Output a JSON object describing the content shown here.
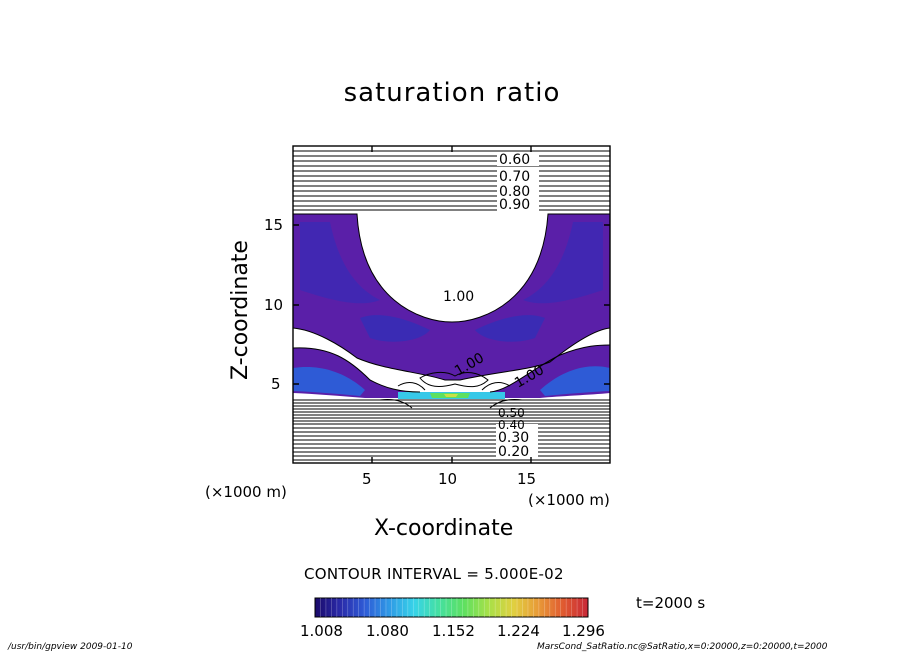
{
  "title": "saturation ratio",
  "chart_data": {
    "type": "heatmap",
    "title": "saturation ratio",
    "xlabel": "X-coordinate",
    "ylabel": "Z-coordinate",
    "x_unit": "(×1000 m)",
    "z_unit": "(×1000 m)",
    "xlim": [
      0,
      20
    ],
    "ylim": [
      0,
      20
    ],
    "x_ticks": [
      "5",
      "10",
      "15"
    ],
    "y_ticks": [
      "5",
      "10",
      "15"
    ],
    "contour_labels": [
      "0.60",
      "0.70",
      "0.80",
      "0.90",
      "1.00",
      "1.00",
      "1.00",
      "0.50",
      "0.40",
      "0.30",
      "0.20"
    ],
    "contour_interval_text": "CONTOUR INTERVAL = 5.000E-02",
    "colorbar": {
      "ticks": [
        "1.008",
        "1.080",
        "1.152",
        "1.224",
        "1.296"
      ],
      "min": 1.0,
      "max": 1.33,
      "colors": [
        "#1a0a6a",
        "#2a2aa8",
        "#2e5bd6",
        "#2f9ae6",
        "#37d3e8",
        "#45e0a0",
        "#5ee060",
        "#a8e048",
        "#e0d040",
        "#e89a38",
        "#e05a30",
        "#c82838"
      ]
    },
    "time_label": "t=2000  s"
  },
  "footer": {
    "left": "/usr/bin/gpview   2009-01-10",
    "right": "MarsCond_SatRatio.nc@SatRatio,x=0:20000,z=0:20000,t=2000"
  }
}
